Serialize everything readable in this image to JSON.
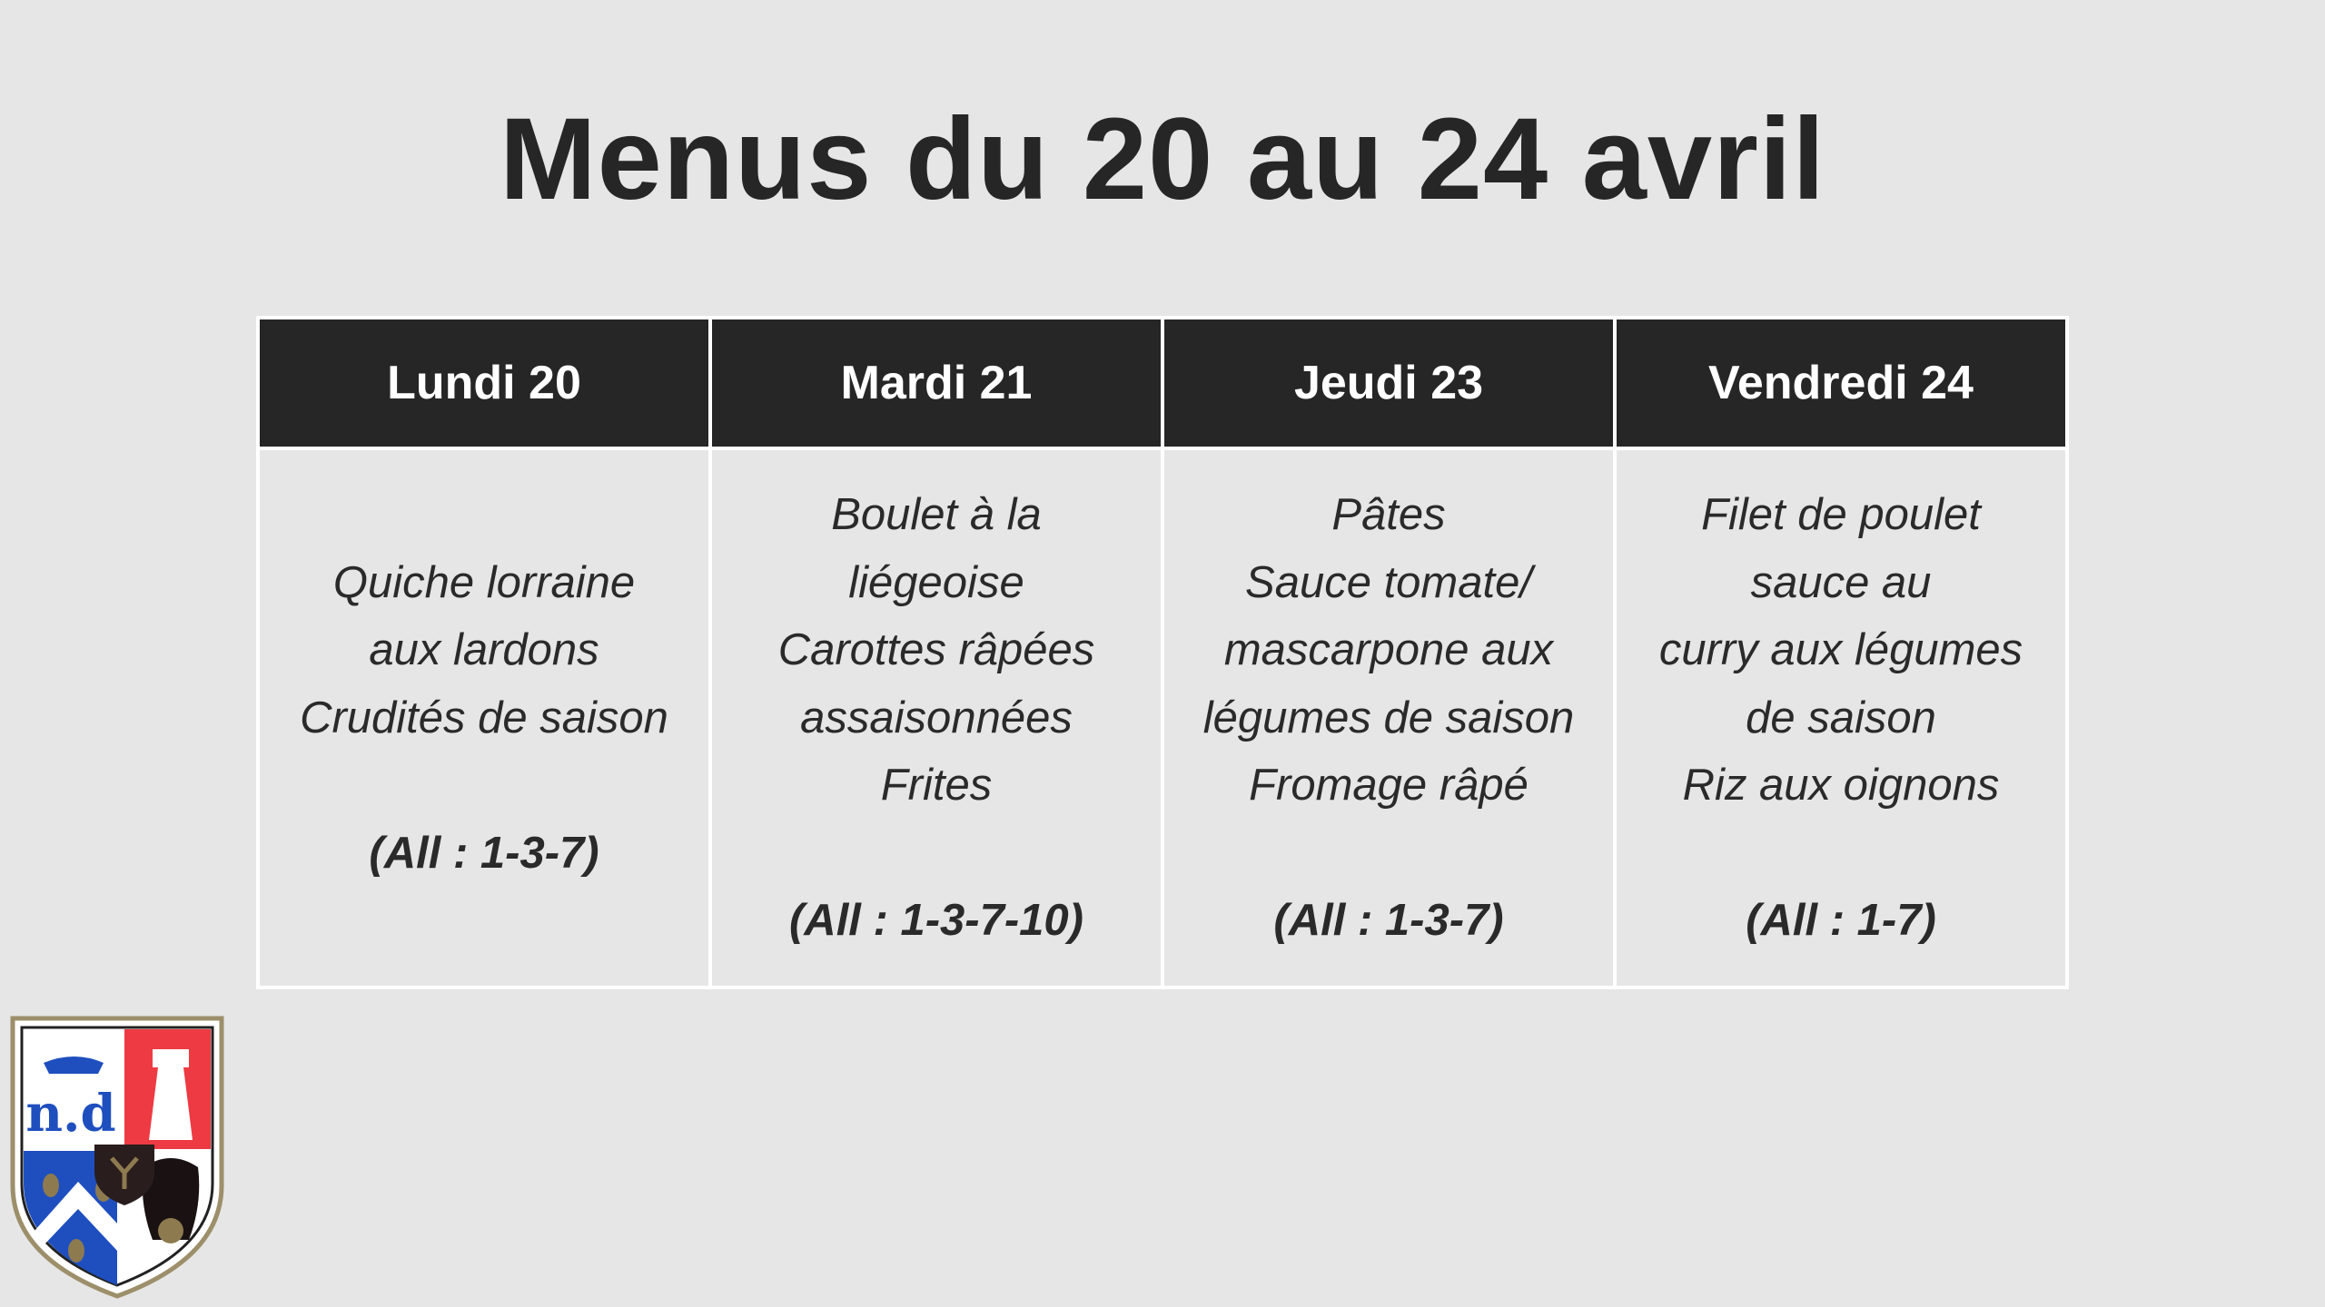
{
  "title": "Menus du 20 au 24 avril",
  "days": [
    {
      "label": "Lundi 20",
      "lines": [
        "Quiche lorraine",
        "aux lardons",
        "Crudités de saison",
        ""
      ],
      "allergens": "(All : 1-3-7)"
    },
    {
      "label": "Mardi 21",
      "lines": [
        "Boulet à la",
        "liégeoise",
        "Carottes râpées",
        "assaisonnées",
        "Frites",
        ""
      ],
      "allergens": "(All : 1-3-7-10)"
    },
    {
      "label": "Jeudi 23",
      "lines": [
        "Pâtes",
        "Sauce tomate/",
        "mascarpone aux",
        "légumes de saison",
        "Fromage râpé",
        ""
      ],
      "allergens": "(All : 1-3-7)"
    },
    {
      "label": "Vendredi 24",
      "lines": [
        "Filet de poulet",
        "sauce au",
        "curry aux légumes",
        "de saison",
        "Riz aux oignons",
        ""
      ],
      "allergens": "(All : 1-7)"
    }
  ],
  "logo": {
    "icon": "coat-of-arms-shield",
    "lettering": "n.d"
  },
  "colors": {
    "background": "#e6e6e6",
    "header": "#262626",
    "text": "#262626",
    "border": "#ffffff"
  }
}
